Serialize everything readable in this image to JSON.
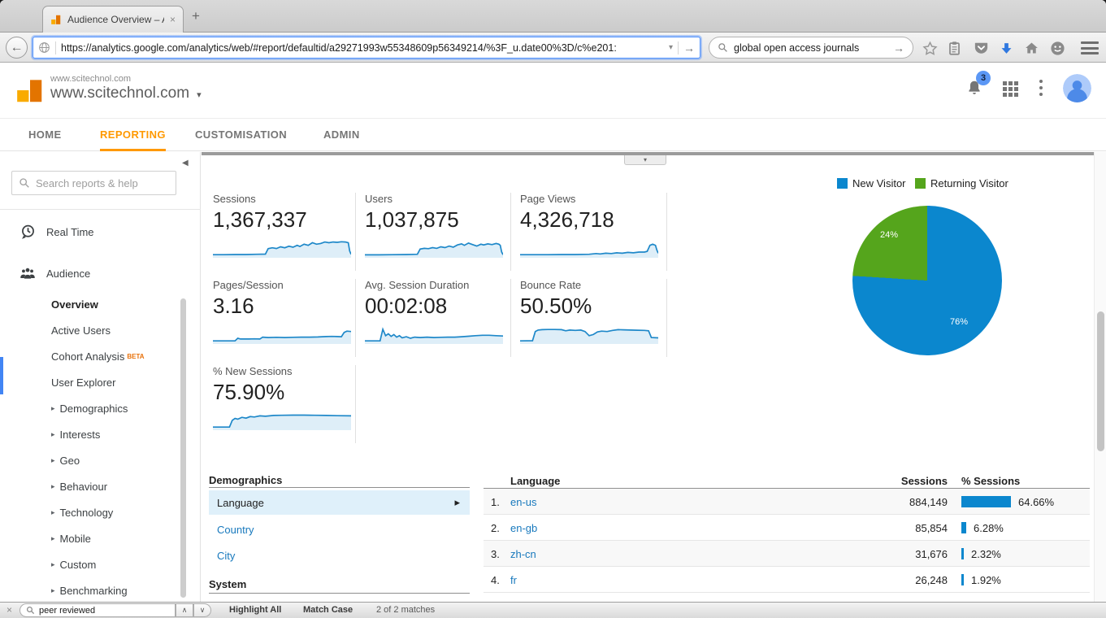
{
  "icons": {
    "caret_down": "▾",
    "arrow_right_small": "▸",
    "collapse_left": "◀",
    "back_arrow": "←",
    "go_arrow": "→",
    "close_x": "×",
    "new_tab_plus": "+",
    "find_prev": "∧",
    "find_next": "∨"
  },
  "browser": {
    "tab": {
      "title": "Audience Overview – Anal..."
    },
    "toolbar": {
      "url": "https://analytics.google.com/analytics/web/#report/defaultid/a29271993w55348609p56349214/%3F_u.date00%3D/c%e201:",
      "search_value": "global open access journals"
    },
    "findbar": {
      "query": "peer reviewed",
      "highlight_all": "Highlight All",
      "match_case": "Match Case",
      "matches": "2 of 2 matches"
    }
  },
  "ga": {
    "header": {
      "property_small": "www.scitechnol.com",
      "property_big": "www.scitechnol.com",
      "notification_count": "3"
    },
    "nav": {
      "items": [
        {
          "label": "HOME"
        },
        {
          "label": "REPORTING"
        },
        {
          "label": "CUSTOMISATION"
        },
        {
          "label": "ADMIN"
        }
      ]
    },
    "accent_orange": "#ff9900",
    "sidebar": {
      "search_placeholder": "Search reports & help",
      "items": [
        {
          "label": "Real Time"
        },
        {
          "label": "Audience"
        },
        {
          "label": "Overview"
        },
        {
          "label": "Active Users"
        },
        {
          "label": "Cohort Analysis",
          "badge": "BETA"
        },
        {
          "label": "User Explorer"
        },
        {
          "label": "Demographics"
        },
        {
          "label": "Interests"
        },
        {
          "label": "Geo"
        },
        {
          "label": "Behaviour"
        },
        {
          "label": "Technology"
        },
        {
          "label": "Mobile"
        },
        {
          "label": "Custom"
        },
        {
          "label": "Benchmarking"
        }
      ]
    },
    "metrics": [
      {
        "label": "Sessions",
        "value": "1,367,337"
      },
      {
        "label": "Users",
        "value": "1,037,875"
      },
      {
        "label": "Page Views",
        "value": "4,326,718"
      },
      {
        "label": "Pages/Session",
        "value": "3.16"
      },
      {
        "label": "Avg. Session Duration",
        "value": "00:02:08"
      },
      {
        "label": "Bounce Rate",
        "value": "50.50%"
      },
      {
        "label": "% New Sessions",
        "value": "75.90%"
      }
    ],
    "demographics_panel": {
      "title": "Demographics",
      "selected_item": "Language",
      "links": [
        {
          "label": "Country"
        },
        {
          "label": "City"
        }
      ],
      "system_title": "System"
    },
    "language_table": {
      "headers": {
        "dimension": "Language",
        "sessions": "Sessions",
        "pct": "% Sessions"
      },
      "rows": [
        {
          "rank": "1.",
          "label": "en-us",
          "sessions": "884,149",
          "pct": "64.66%"
        },
        {
          "rank": "2.",
          "label": "en-gb",
          "sessions": "85,854",
          "pct": "6.28%"
        },
        {
          "rank": "3.",
          "label": "zh-cn",
          "sessions": "31,676",
          "pct": "2.32%"
        },
        {
          "rank": "4.",
          "label": "fr",
          "sessions": "26,248",
          "pct": "1.92%"
        }
      ],
      "bar_color": "#0b87ce"
    }
  },
  "chart_data": [
    {
      "type": "line",
      "name": "Sessions sparkline",
      "points": [
        [
          0,
          0.1
        ],
        [
          8,
          0.1
        ],
        [
          16,
          0.11
        ],
        [
          24,
          0.11
        ],
        [
          32,
          0.12
        ],
        [
          38,
          0.13
        ],
        [
          40,
          0.42
        ],
        [
          43,
          0.47
        ],
        [
          46,
          0.43
        ],
        [
          49,
          0.52
        ],
        [
          52,
          0.47
        ],
        [
          55,
          0.55
        ],
        [
          58,
          0.5
        ],
        [
          61,
          0.6
        ],
        [
          63,
          0.54
        ],
        [
          66,
          0.66
        ],
        [
          69,
          0.6
        ],
        [
          72,
          0.74
        ],
        [
          75,
          0.66
        ],
        [
          78,
          0.7
        ],
        [
          81,
          0.78
        ],
        [
          84,
          0.74
        ],
        [
          87,
          0.78
        ],
        [
          90,
          0.76
        ],
        [
          93,
          0.79
        ],
        [
          96,
          0.78
        ],
        [
          98,
          0.74
        ],
        [
          99,
          0.3
        ],
        [
          100,
          0.12
        ]
      ]
    },
    {
      "type": "line",
      "name": "Users sparkline",
      "points": [
        [
          0,
          0.09
        ],
        [
          10,
          0.09
        ],
        [
          20,
          0.1
        ],
        [
          30,
          0.11
        ],
        [
          38,
          0.12
        ],
        [
          40,
          0.4
        ],
        [
          43,
          0.44
        ],
        [
          46,
          0.42
        ],
        [
          49,
          0.48
        ],
        [
          52,
          0.44
        ],
        [
          55,
          0.52
        ],
        [
          58,
          0.48
        ],
        [
          61,
          0.56
        ],
        [
          64,
          0.5
        ],
        [
          67,
          0.62
        ],
        [
          70,
          0.68
        ],
        [
          72,
          0.6
        ],
        [
          75,
          0.72
        ],
        [
          78,
          0.64
        ],
        [
          81,
          0.56
        ],
        [
          84,
          0.66
        ],
        [
          86,
          0.62
        ],
        [
          89,
          0.68
        ],
        [
          92,
          0.64
        ],
        [
          95,
          0.7
        ],
        [
          97,
          0.66
        ],
        [
          98,
          0.6
        ],
        [
          99,
          0.25
        ],
        [
          100,
          0.1
        ]
      ]
    },
    {
      "type": "line",
      "name": "Page Views sparkline",
      "points": [
        [
          0,
          0.1
        ],
        [
          10,
          0.1
        ],
        [
          20,
          0.1
        ],
        [
          30,
          0.11
        ],
        [
          40,
          0.11
        ],
        [
          50,
          0.12
        ],
        [
          55,
          0.16
        ],
        [
          58,
          0.14
        ],
        [
          62,
          0.18
        ],
        [
          66,
          0.16
        ],
        [
          70,
          0.2
        ],
        [
          74,
          0.18
        ],
        [
          78,
          0.22
        ],
        [
          82,
          0.2
        ],
        [
          86,
          0.24
        ],
        [
          90,
          0.24
        ],
        [
          92,
          0.28
        ],
        [
          94,
          0.6
        ],
        [
          96,
          0.66
        ],
        [
          98,
          0.6
        ],
        [
          99,
          0.35
        ],
        [
          100,
          0.18
        ]
      ]
    },
    {
      "type": "line",
      "name": "Pages/Session sparkline",
      "points": [
        [
          0,
          0.1
        ],
        [
          16,
          0.1
        ],
        [
          18,
          0.24
        ],
        [
          20,
          0.2
        ],
        [
          26,
          0.2
        ],
        [
          30,
          0.21
        ],
        [
          34,
          0.2
        ],
        [
          36,
          0.3
        ],
        [
          40,
          0.28
        ],
        [
          46,
          0.29
        ],
        [
          52,
          0.28
        ],
        [
          58,
          0.29
        ],
        [
          64,
          0.3
        ],
        [
          70,
          0.3
        ],
        [
          76,
          0.31
        ],
        [
          82,
          0.33
        ],
        [
          86,
          0.34
        ],
        [
          90,
          0.33
        ],
        [
          93,
          0.32
        ],
        [
          95,
          0.55
        ],
        [
          97,
          0.62
        ],
        [
          100,
          0.6
        ]
      ]
    },
    {
      "type": "line",
      "name": "Avg. Session Duration sparkline",
      "points": [
        [
          0,
          0.1
        ],
        [
          11,
          0.1
        ],
        [
          13,
          0.72
        ],
        [
          15,
          0.38
        ],
        [
          17,
          0.48
        ],
        [
          19,
          0.34
        ],
        [
          21,
          0.44
        ],
        [
          23,
          0.3
        ],
        [
          25,
          0.38
        ],
        [
          27,
          0.26
        ],
        [
          30,
          0.32
        ],
        [
          33,
          0.24
        ],
        [
          36,
          0.3
        ],
        [
          40,
          0.28
        ],
        [
          45,
          0.3
        ],
        [
          50,
          0.28
        ],
        [
          55,
          0.29
        ],
        [
          60,
          0.3
        ],
        [
          65,
          0.3
        ],
        [
          70,
          0.32
        ],
        [
          75,
          0.35
        ],
        [
          80,
          0.38
        ],
        [
          85,
          0.4
        ],
        [
          90,
          0.4
        ],
        [
          95,
          0.38
        ],
        [
          100,
          0.36
        ]
      ]
    },
    {
      "type": "line",
      "name": "Bounce Rate sparkline",
      "points": [
        [
          0,
          0.1
        ],
        [
          9,
          0.11
        ],
        [
          11,
          0.6
        ],
        [
          13,
          0.68
        ],
        [
          16,
          0.7
        ],
        [
          20,
          0.71
        ],
        [
          25,
          0.71
        ],
        [
          30,
          0.7
        ],
        [
          33,
          0.64
        ],
        [
          36,
          0.68
        ],
        [
          40,
          0.66
        ],
        [
          44,
          0.68
        ],
        [
          47,
          0.6
        ],
        [
          50,
          0.38
        ],
        [
          53,
          0.44
        ],
        [
          56,
          0.58
        ],
        [
          59,
          0.62
        ],
        [
          63,
          0.6
        ],
        [
          67,
          0.66
        ],
        [
          71,
          0.7
        ],
        [
          75,
          0.69
        ],
        [
          80,
          0.68
        ],
        [
          85,
          0.67
        ],
        [
          90,
          0.66
        ],
        [
          93,
          0.64
        ],
        [
          95,
          0.28
        ],
        [
          100,
          0.26
        ]
      ]
    },
    {
      "type": "line",
      "name": "% New Sessions sparkline",
      "points": [
        [
          0,
          0.1
        ],
        [
          12,
          0.1
        ],
        [
          14,
          0.46
        ],
        [
          16,
          0.56
        ],
        [
          18,
          0.52
        ],
        [
          21,
          0.62
        ],
        [
          24,
          0.58
        ],
        [
          27,
          0.66
        ],
        [
          30,
          0.64
        ],
        [
          34,
          0.7
        ],
        [
          38,
          0.68
        ],
        [
          44,
          0.72
        ],
        [
          50,
          0.73
        ],
        [
          58,
          0.74
        ],
        [
          66,
          0.74
        ],
        [
          74,
          0.73
        ],
        [
          82,
          0.72
        ],
        [
          90,
          0.71
        ],
        [
          100,
          0.7
        ]
      ]
    },
    {
      "type": "pie",
      "name": "New vs Returning Visitor",
      "labels": [
        "New Visitor",
        "Returning Visitor"
      ],
      "values": [
        76,
        24
      ],
      "pct_labels": [
        "76%",
        "24%"
      ],
      "colors": [
        "#0b87ce",
        "#55a51c"
      ],
      "legend_position": "top"
    },
    {
      "type": "table",
      "name": "Sessions by Language",
      "columns": [
        "Language",
        "Sessions",
        "% Sessions"
      ],
      "rows": [
        [
          "en-us",
          884149,
          64.66
        ],
        [
          "en-gb",
          85854,
          6.28
        ],
        [
          "zh-cn",
          31676,
          2.32
        ],
        [
          "fr",
          26248,
          1.92
        ]
      ]
    }
  ]
}
